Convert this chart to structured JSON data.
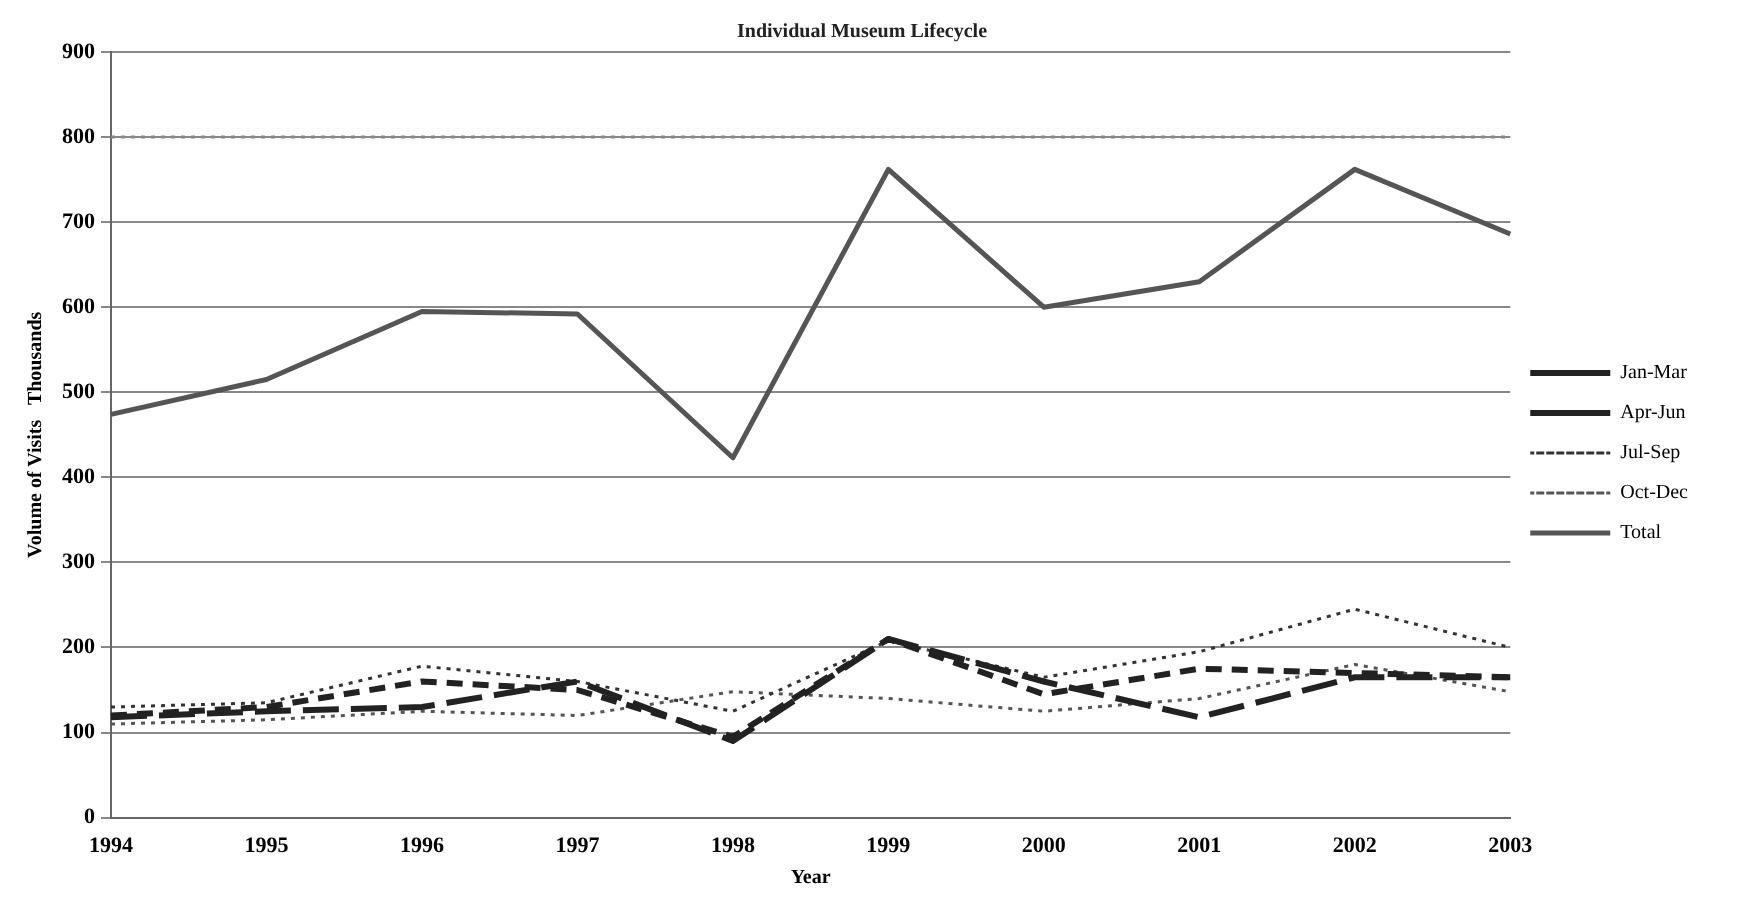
{
  "chart_data": {
    "type": "line",
    "title": "Individual Museum Lifecycle",
    "xlabel": "Year",
    "ylabel": "Volume of Visits   Thousands",
    "categories": [
      "1994",
      "1995",
      "1996",
      "1997",
      "1998",
      "1999",
      "2000",
      "2001",
      "2002",
      "2003"
    ],
    "series": [
      {
        "name": "Jan-Mar",
        "color": "#222222",
        "line_style": "dashed",
        "values": [
          118,
          125,
          130,
          160,
          90,
          210,
          160,
          118,
          165,
          165
        ]
      },
      {
        "name": "Apr-Jun",
        "color": "#222222",
        "line_style": "dashed",
        "values": [
          120,
          130,
          160,
          150,
          95,
          210,
          145,
          175,
          170,
          165
        ]
      },
      {
        "name": "Jul-Sep",
        "color": "#333333",
        "line_style": "dotted",
        "values": [
          130,
          135,
          178,
          160,
          125,
          208,
          165,
          195,
          245,
          200
        ]
      },
      {
        "name": "Oct-Dec",
        "color": "#555555",
        "line_style": "dotted",
        "values": [
          110,
          115,
          125,
          120,
          148,
          140,
          125,
          140,
          180,
          148
        ]
      },
      {
        "name": "Total",
        "color": "#555555",
        "line_style": "solid",
        "values": [
          474,
          515,
          595,
          592,
          423,
          762,
          600,
          630,
          762,
          686
        ]
      }
    ],
    "ylim": [
      0,
      900
    ],
    "yticks": [
      0,
      100,
      200,
      300,
      400,
      500,
      600,
      700,
      800,
      900
    ],
    "grid": "y",
    "legend": "right",
    "marker": "none",
    "ref_lines": [
      {
        "axis": "y",
        "value": 800,
        "color": "#888888",
        "line_style": "dotted"
      }
    ]
  }
}
